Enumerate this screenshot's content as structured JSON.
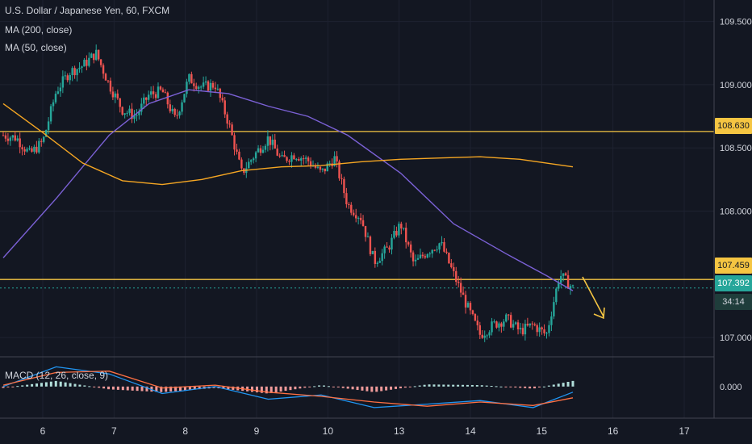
{
  "header": {
    "title": "U.S. Dollar / Japanese Yen, 60, FXCM",
    "ma200_label": "MA (200, close)",
    "ma50_label": "MA (50, close)"
  },
  "macd": {
    "label": "MACD (12, 26, close, 9)"
  },
  "price_labels": {
    "upper_level": "108.630",
    "lower_level": "107.459",
    "current": "107.392",
    "countdown": "34:14"
  },
  "colors": {
    "background": "#131722",
    "up": "#26a69a",
    "down": "#ef5350",
    "ma50": "#7b61d6",
    "ma200": "#f5a623",
    "level": "#f5c542",
    "arrow": "#f5c542",
    "macd_line": "#2196f3",
    "signal_line": "#ff7043"
  },
  "chart_data": {
    "type": "line",
    "title": "U.S. Dollar / Japanese Yen, 60, FXCM",
    "x_ticks": [
      "6",
      "7",
      "8",
      "9",
      "10",
      "13",
      "14",
      "15",
      "16",
      "17"
    ],
    "y_ticks": [
      "109.500",
      "109.000",
      "108.500",
      "108.000",
      "107.000"
    ],
    "ylim": [
      106.86,
      109.67
    ],
    "horizontal_levels": [
      108.63,
      107.459
    ],
    "current_price": 107.392,
    "price_anchors": [
      [
        0,
        108.6
      ],
      [
        1,
        108.58
      ],
      [
        2,
        108.45
      ],
      [
        3,
        108.55
      ],
      [
        4,
        108.95
      ],
      [
        5,
        109.1
      ],
      [
        6,
        109.15
      ],
      [
        7,
        109.25
      ],
      [
        8,
        109.0
      ],
      [
        9,
        108.8
      ],
      [
        10,
        108.75
      ],
      [
        11,
        108.92
      ],
      [
        12,
        108.95
      ],
      [
        13,
        108.72
      ],
      [
        14,
        109.05
      ],
      [
        15,
        108.98
      ],
      [
        16,
        109.0
      ],
      [
        17,
        108.7
      ],
      [
        18,
        108.3
      ],
      [
        19,
        108.45
      ],
      [
        20,
        108.58
      ],
      [
        21,
        108.4
      ],
      [
        22,
        108.45
      ],
      [
        23,
        108.4
      ],
      [
        24,
        108.3
      ],
      [
        25,
        108.42
      ],
      [
        26,
        108.05
      ],
      [
        27,
        107.95
      ],
      [
        28,
        107.6
      ],
      [
        29,
        107.7
      ],
      [
        30,
        107.9
      ],
      [
        31,
        107.58
      ],
      [
        32,
        107.68
      ],
      [
        33,
        107.75
      ],
      [
        34,
        107.5
      ],
      [
        35,
        107.25
      ],
      [
        36,
        107.02
      ],
      [
        37,
        107.1
      ],
      [
        38,
        107.15
      ],
      [
        39,
        107.05
      ],
      [
        40,
        107.1
      ],
      [
        41,
        107.02
      ],
      [
        42,
        107.5
      ],
      [
        43,
        107.39
      ]
    ],
    "series": [
      {
        "name": "MA (50, close)",
        "values": [
          [
            0,
            107.63
          ],
          [
            4,
            108.1
          ],
          [
            8,
            108.6
          ],
          [
            11,
            108.85
          ],
          [
            14,
            108.96
          ],
          [
            17,
            108.93
          ],
          [
            20,
            108.83
          ],
          [
            23,
            108.75
          ],
          [
            26,
            108.6
          ],
          [
            30,
            108.3
          ],
          [
            34,
            107.9
          ],
          [
            38,
            107.66
          ],
          [
            41,
            107.49
          ],
          [
            43,
            107.37
          ]
        ]
      },
      {
        "name": "MA (200, close)",
        "values": [
          [
            0,
            108.85
          ],
          [
            3,
            108.62
          ],
          [
            6,
            108.38
          ],
          [
            9,
            108.24
          ],
          [
            12,
            108.21
          ],
          [
            15,
            108.25
          ],
          [
            18,
            108.32
          ],
          [
            21,
            108.35
          ],
          [
            24,
            108.36
          ],
          [
            27,
            108.39
          ],
          [
            30,
            108.41
          ],
          [
            33,
            108.42
          ],
          [
            36,
            108.43
          ],
          [
            39,
            108.41
          ],
          [
            43,
            108.35
          ]
        ]
      }
    ],
    "macd": {
      "ylim": [
        -0.45,
        0.4
      ],
      "y_tick": "0.000",
      "macd_line": [
        [
          0,
          0.0
        ],
        [
          4,
          0.28
        ],
        [
          8,
          0.18
        ],
        [
          12,
          -0.1
        ],
        [
          16,
          0.0
        ],
        [
          20,
          -0.18
        ],
        [
          24,
          -0.12
        ],
        [
          28,
          -0.3
        ],
        [
          32,
          -0.25
        ],
        [
          36,
          -0.2
        ],
        [
          40,
          -0.3
        ],
        [
          43,
          -0.08
        ]
      ],
      "signal_line": [
        [
          0,
          0.02
        ],
        [
          4,
          0.2
        ],
        [
          8,
          0.22
        ],
        [
          12,
          -0.02
        ],
        [
          16,
          0.02
        ],
        [
          20,
          -0.08
        ],
        [
          24,
          -0.14
        ],
        [
          28,
          -0.22
        ],
        [
          32,
          -0.28
        ],
        [
          36,
          -0.22
        ],
        [
          40,
          -0.27
        ],
        [
          43,
          -0.16
        ]
      ]
    }
  }
}
